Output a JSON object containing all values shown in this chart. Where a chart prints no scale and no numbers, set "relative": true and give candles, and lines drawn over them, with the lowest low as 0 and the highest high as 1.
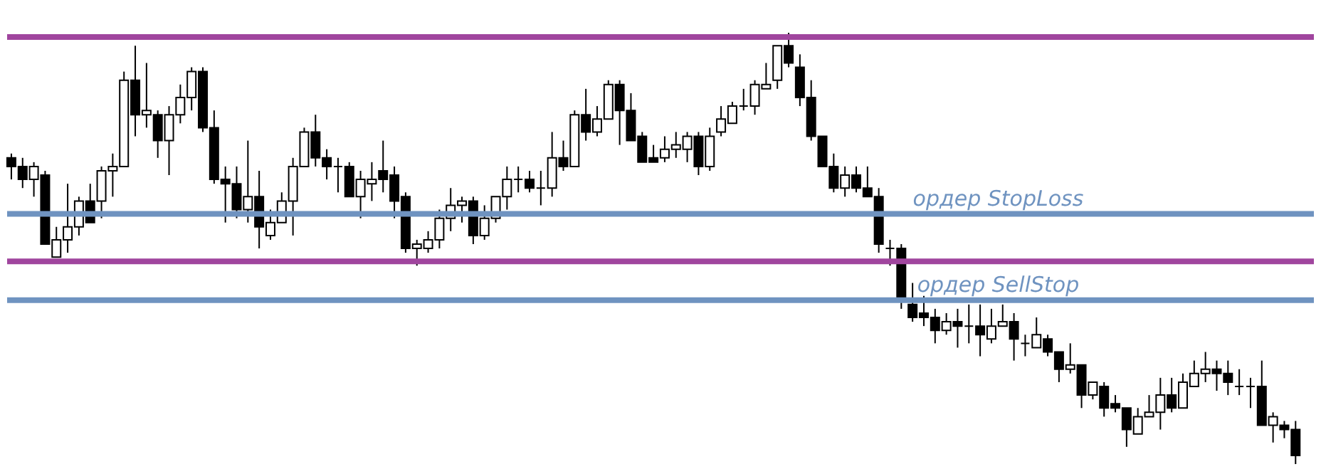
{
  "chart_data": {
    "type": "candlestick",
    "relative": true,
    "categories": [
      null,
      null,
      null,
      null,
      null,
      null,
      null,
      null,
      null,
      null,
      null,
      null,
      null,
      null,
      null,
      null,
      null,
      null,
      null,
      null,
      null,
      null,
      null,
      null,
      null,
      null,
      null,
      null,
      null,
      null,
      null,
      null,
      null,
      null,
      null,
      null,
      null,
      null,
      null,
      null,
      null,
      null,
      null,
      null,
      null,
      null,
      null,
      null,
      null,
      null,
      null,
      null,
      null,
      null,
      null,
      null,
      null,
      null,
      null,
      null,
      null,
      null,
      null,
      null,
      null,
      null,
      null,
      null,
      null,
      null,
      null,
      null,
      null,
      null,
      null,
      null,
      null,
      null,
      null,
      null,
      null,
      null,
      null,
      null,
      null,
      null,
      null,
      null,
      null,
      null,
      null,
      null,
      null,
      null,
      null,
      null,
      null,
      null,
      null,
      null,
      null,
      null,
      null,
      null,
      null,
      null,
      null,
      null,
      null,
      null,
      null,
      null,
      null,
      null,
      null
    ],
    "ohlc": [
      [
        0.71,
        0.72,
        0.66,
        0.69
      ],
      [
        0.69,
        0.71,
        0.64,
        0.66
      ],
      [
        0.66,
        0.7,
        0.62,
        0.69
      ],
      [
        0.67,
        0.68,
        0.51,
        0.51
      ],
      [
        0.48,
        0.55,
        0.48,
        0.52
      ],
      [
        0.52,
        0.65,
        0.49,
        0.55
      ],
      [
        0.55,
        0.62,
        0.53,
        0.61
      ],
      [
        0.61,
        0.65,
        0.56,
        0.56
      ],
      [
        0.61,
        0.69,
        0.57,
        0.68
      ],
      [
        0.68,
        0.72,
        0.62,
        0.69
      ],
      [
        0.69,
        0.91,
        0.69,
        0.89
      ],
      [
        0.89,
        0.97,
        0.76,
        0.81
      ],
      [
        0.81,
        0.93,
        0.78,
        0.82
      ],
      [
        0.81,
        0.82,
        0.71,
        0.75
      ],
      [
        0.75,
        0.83,
        0.67,
        0.81
      ],
      [
        0.81,
        0.88,
        0.79,
        0.85
      ],
      [
        0.85,
        0.92,
        0.82,
        0.91
      ],
      [
        0.91,
        0.92,
        0.77,
        0.78
      ],
      [
        0.78,
        0.82,
        0.65,
        0.66
      ],
      [
        0.66,
        0.69,
        0.56,
        0.65
      ],
      [
        0.65,
        0.69,
        0.57,
        0.59
      ],
      [
        0.59,
        0.75,
        0.56,
        0.62
      ],
      [
        0.62,
        0.68,
        0.5,
        0.55
      ],
      [
        0.53,
        0.59,
        0.52,
        0.56
      ],
      [
        0.56,
        0.63,
        0.56,
        0.61
      ],
      [
        0.61,
        0.71,
        0.53,
        0.69
      ],
      [
        0.69,
        0.78,
        0.69,
        0.77
      ],
      [
        0.77,
        0.81,
        0.69,
        0.71
      ],
      [
        0.71,
        0.73,
        0.66,
        0.69
      ],
      [
        0.69,
        0.71,
        0.63,
        0.69
      ],
      [
        0.69,
        0.7,
        0.62,
        0.62
      ],
      [
        0.62,
        0.68,
        0.57,
        0.66
      ],
      [
        0.65,
        0.7,
        0.61,
        0.66
      ],
      [
        0.68,
        0.75,
        0.63,
        0.66
      ],
      [
        0.67,
        0.69,
        0.57,
        0.61
      ],
      [
        0.62,
        0.63,
        0.49,
        0.5
      ],
      [
        0.5,
        0.52,
        0.46,
        0.51
      ],
      [
        0.5,
        0.54,
        0.49,
        0.52
      ],
      [
        0.52,
        0.59,
        0.5,
        0.57
      ],
      [
        0.57,
        0.64,
        0.54,
        0.6
      ],
      [
        0.6,
        0.62,
        0.56,
        0.61
      ],
      [
        0.61,
        0.62,
        0.51,
        0.53
      ],
      [
        0.53,
        0.6,
        0.52,
        0.57
      ],
      [
        0.57,
        0.62,
        0.56,
        0.62
      ],
      [
        0.62,
        0.69,
        0.59,
        0.66
      ],
      [
        0.66,
        0.69,
        0.63,
        0.66
      ],
      [
        0.66,
        0.68,
        0.63,
        0.64
      ],
      [
        0.64,
        0.68,
        0.6,
        0.64
      ],
      [
        0.64,
        0.77,
        0.62,
        0.71
      ],
      [
        0.71,
        0.75,
        0.68,
        0.69
      ],
      [
        0.69,
        0.82,
        0.69,
        0.81
      ],
      [
        0.81,
        0.87,
        0.75,
        0.77
      ],
      [
        0.77,
        0.83,
        0.76,
        0.8
      ],
      [
        0.8,
        0.89,
        0.8,
        0.88
      ],
      [
        0.88,
        0.89,
        0.74,
        0.82
      ],
      [
        0.82,
        0.86,
        0.75,
        0.75
      ],
      [
        0.76,
        0.77,
        0.7,
        0.7
      ],
      [
        0.71,
        0.74,
        0.7,
        0.7
      ],
      [
        0.71,
        0.76,
        0.7,
        0.73
      ],
      [
        0.73,
        0.77,
        0.71,
        0.74
      ],
      [
        0.73,
        0.77,
        0.7,
        0.76
      ],
      [
        0.76,
        0.77,
        0.67,
        0.69
      ],
      [
        0.69,
        0.78,
        0.68,
        0.76
      ],
      [
        0.77,
        0.83,
        0.76,
        0.8
      ],
      [
        0.79,
        0.84,
        0.79,
        0.83
      ],
      [
        0.83,
        0.87,
        0.82,
        0.83
      ],
      [
        0.83,
        0.89,
        0.81,
        0.88
      ],
      [
        0.87,
        0.93,
        0.87,
        0.88
      ],
      [
        0.89,
        0.97,
        0.87,
        0.97
      ],
      [
        0.97,
        1.0,
        0.92,
        0.93
      ],
      [
        0.92,
        0.95,
        0.83,
        0.85
      ],
      [
        0.85,
        0.89,
        0.75,
        0.76
      ],
      [
        0.76,
        0.76,
        0.69,
        0.69
      ],
      [
        0.69,
        0.72,
        0.63,
        0.64
      ],
      [
        0.64,
        0.69,
        0.62,
        0.67
      ],
      [
        0.67,
        0.69,
        0.63,
        0.64
      ],
      [
        0.64,
        0.69,
        0.62,
        0.62
      ],
      [
        0.62,
        0.64,
        0.49,
        0.51
      ],
      [
        0.5,
        0.52,
        0.46,
        0.5
      ],
      [
        0.5,
        0.51,
        0.36,
        0.38
      ],
      [
        0.37,
        0.42,
        0.33,
        0.34
      ],
      [
        0.35,
        0.39,
        0.32,
        0.34
      ],
      [
        0.34,
        0.36,
        0.28,
        0.31
      ],
      [
        0.31,
        0.35,
        0.3,
        0.33
      ],
      [
        0.33,
        0.36,
        0.27,
        0.32
      ],
      [
        0.32,
        0.37,
        0.28,
        0.32
      ],
      [
        0.32,
        0.37,
        0.25,
        0.3
      ],
      [
        0.29,
        0.36,
        0.28,
        0.32
      ],
      [
        0.32,
        0.37,
        0.32,
        0.33
      ],
      [
        0.33,
        0.35,
        0.24,
        0.29
      ],
      [
        0.28,
        0.3,
        0.25,
        0.28
      ],
      [
        0.27,
        0.34,
        0.27,
        0.3
      ],
      [
        0.29,
        0.3,
        0.25,
        0.26
      ],
      [
        0.26,
        0.26,
        0.19,
        0.22
      ],
      [
        0.22,
        0.28,
        0.21,
        0.23
      ],
      [
        0.23,
        0.23,
        0.13,
        0.16
      ],
      [
        0.16,
        0.19,
        0.15,
        0.19
      ],
      [
        0.18,
        0.19,
        0.11,
        0.13
      ],
      [
        0.14,
        0.16,
        0.12,
        0.13
      ],
      [
        0.13,
        0.13,
        0.04,
        0.08
      ],
      [
        0.07,
        0.13,
        0.07,
        0.11
      ],
      [
        0.11,
        0.16,
        0.11,
        0.12
      ],
      [
        0.12,
        0.2,
        0.08,
        0.16
      ],
      [
        0.16,
        0.2,
        0.12,
        0.13
      ],
      [
        0.13,
        0.21,
        0.13,
        0.19
      ],
      [
        0.18,
        0.24,
        0.18,
        0.21
      ],
      [
        0.21,
        0.26,
        0.19,
        0.22
      ],
      [
        0.22,
        0.24,
        0.17,
        0.21
      ],
      [
        0.21,
        0.24,
        0.16,
        0.19
      ],
      [
        0.18,
        0.22,
        0.16,
        0.18
      ],
      [
        0.18,
        0.2,
        0.13,
        0.18
      ],
      [
        0.18,
        0.24,
        0.09,
        0.09
      ],
      [
        0.09,
        0.12,
        0.05,
        0.11
      ],
      [
        0.09,
        0.1,
        0.06,
        0.08
      ],
      [
        0.08,
        0.1,
        0.0,
        0.02
      ]
    ],
    "ref_lines": [
      {
        "axis": "y",
        "value": 0.99,
        "color": "#a0459e"
      },
      {
        "axis": "y",
        "value": 0.47,
        "color": "#a0459e"
      },
      {
        "axis": "y",
        "value": 0.58,
        "label": "ордер StopLoss",
        "color": "#6f93c0"
      },
      {
        "axis": "y",
        "value": 0.38,
        "label": "ордер SellStop",
        "color": "#6f93c0"
      }
    ]
  }
}
